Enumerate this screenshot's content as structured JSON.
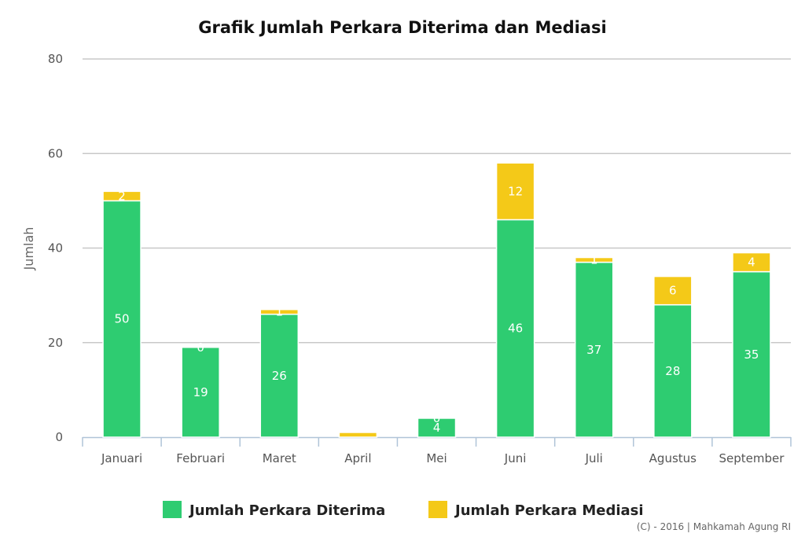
{
  "chart_data": {
    "type": "bar",
    "stacked": true,
    "title": "Grafik Jumlah Perkara Diterima dan Mediasi",
    "xlabel": "",
    "ylabel": "Jumlah",
    "ylim": [
      0,
      80
    ],
    "yticks": [
      0,
      20,
      40,
      60,
      80
    ],
    "grid": true,
    "legend_position": "bottom",
    "categories": [
      "Januari",
      "Februari",
      "Maret",
      "April",
      "Mei",
      "Juni",
      "Juli",
      "Agustus",
      "September"
    ],
    "series": [
      {
        "name": "Jumlah Perkara Diterima",
        "color": "#2ecc71",
        "values": [
          50,
          19,
          26,
          0,
          4,
          46,
          37,
          28,
          35
        ],
        "labels": [
          "50",
          "19",
          "26",
          "",
          "4",
          "46",
          "37",
          "28",
          "35"
        ]
      },
      {
        "name": "Jumlah Perkara Mediasi",
        "color": "#f4c918",
        "values": [
          2,
          0,
          1,
          1,
          0,
          12,
          1,
          6,
          4
        ],
        "labels": [
          "2",
          "0",
          "1",
          "",
          "0",
          "12",
          "1",
          "6",
          "4"
        ]
      }
    ]
  },
  "credits": "(C) - 2016 | Mahkamah Agung RI"
}
